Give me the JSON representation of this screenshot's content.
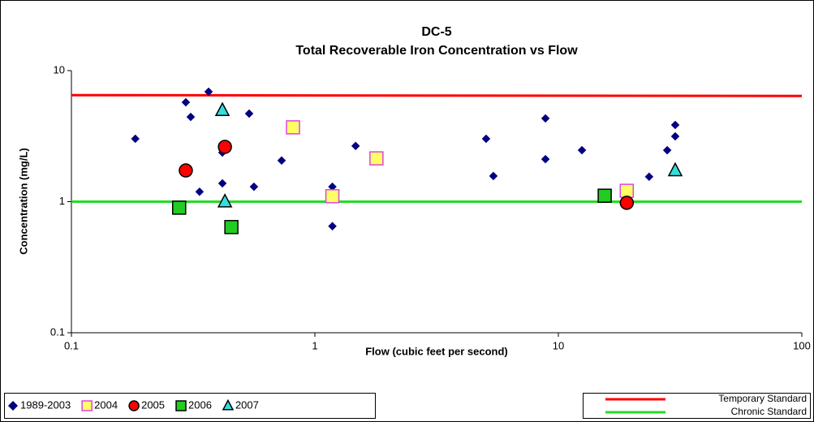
{
  "chart_data": {
    "type": "scatter",
    "title": "DC-5",
    "subtitle": "Total Recoverable Iron Concentration vs Flow",
    "x_label": "Flow (cubic feet per second)",
    "y_label": "Concentration (mg/L)",
    "log_x": true,
    "log_y": true,
    "xlim": [
      0.1,
      100
    ],
    "ylim": [
      0.1,
      10
    ],
    "xticks": [
      0.1,
      1,
      10,
      100
    ],
    "yticks": [
      0.1,
      1,
      10
    ],
    "series": [
      {
        "name": "1989-2003",
        "marker": "diamond",
        "color": "#000080",
        "edge_color": "#000080",
        "x": [
          0.183,
          0.295,
          0.309,
          0.336,
          0.366,
          0.417,
          0.417,
          0.537,
          0.562,
          0.73,
          1.18,
          1.18,
          1.47,
          5.05,
          5.41,
          8.85,
          8.85,
          12.5,
          23.6,
          28.0,
          30.2,
          30.2
        ],
        "values": [
          3.02,
          5.73,
          4.43,
          1.19,
          6.9,
          1.38,
          2.37,
          4.7,
          1.3,
          2.06,
          1.3,
          0.65,
          2.66,
          3.02,
          1.57,
          4.32,
          2.11,
          2.47,
          1.55,
          2.47,
          3.85,
          3.15
        ]
      },
      {
        "name": "2004",
        "marker": "square",
        "color": "#ffff66",
        "edge_color": "#dd44dd",
        "x": [
          0.813,
          1.79,
          1.18,
          19.1
        ],
        "values": [
          3.69,
          2.14,
          1.1,
          1.21
        ]
      },
      {
        "name": "2005",
        "marker": "circle",
        "color": "#ff0000",
        "edge_color": "#000000",
        "x": [
          0.295,
          0.427,
          19.1
        ],
        "values": [
          1.73,
          2.62,
          0.98
        ]
      },
      {
        "name": "2006",
        "marker": "square",
        "color": "#22cc22",
        "edge_color": "#000000",
        "x": [
          0.277,
          0.454,
          15.5
        ],
        "values": [
          0.9,
          0.64,
          1.11
        ]
      },
      {
        "name": "2007",
        "marker": "triangle",
        "color": "#33dddd",
        "edge_color": "#000000",
        "x": [
          0.417,
          0.427,
          30.2
        ],
        "values": [
          4.98,
          1.0,
          1.73
        ]
      },
      {
        "name": "Temporary Standard",
        "marker": "line",
        "color": "#ff0000",
        "x": [
          0.1,
          100
        ],
        "values": [
          6.5,
          6.4
        ]
      },
      {
        "name": "Chronic Standard",
        "marker": "line",
        "color": "#22dd22",
        "x": [
          0.1,
          100
        ],
        "values": [
          1.0,
          1.0
        ]
      }
    ]
  }
}
